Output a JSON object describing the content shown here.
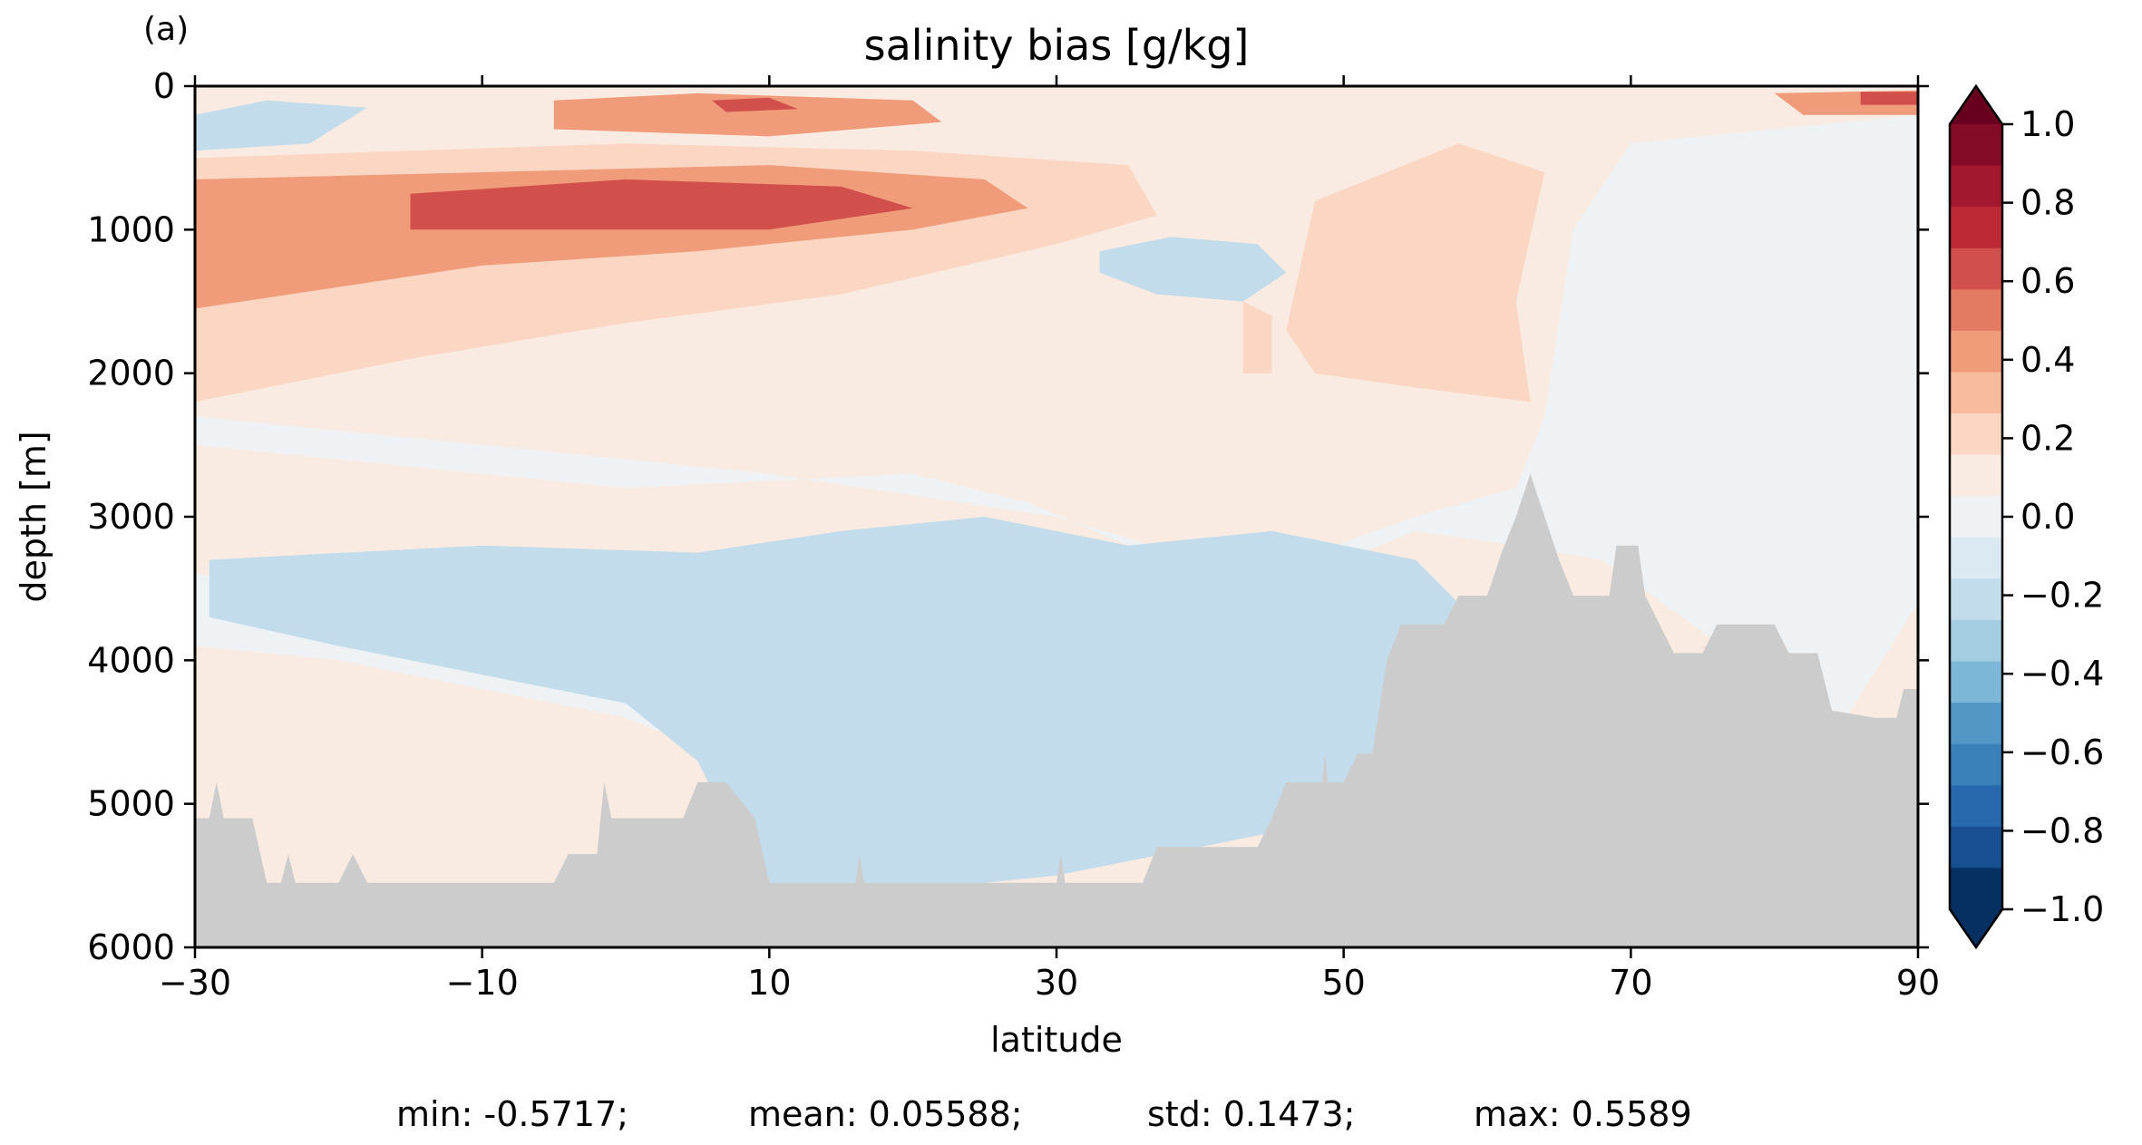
{
  "chart_data": {
    "type": "heatmap",
    "panel_label": "(a)",
    "title": "salinity bias [g/kg]",
    "xlabel": "latitude",
    "ylabel": "depth [m]",
    "xlim": [
      -30,
      90
    ],
    "ylim": [
      6000,
      0
    ],
    "x_ticks": [
      -30,
      -10,
      10,
      30,
      50,
      70,
      90
    ],
    "x_tick_labels": [
      "−30",
      "−10",
      "10",
      "30",
      "50",
      "70",
      "90"
    ],
    "y_ticks": [
      0,
      1000,
      2000,
      3000,
      4000,
      5000,
      6000
    ],
    "y_tick_labels": [
      "0",
      "1000",
      "2000",
      "3000",
      "4000",
      "5000",
      "6000"
    ],
    "colorbar": {
      "range": [
        -1.0,
        1.0
      ],
      "extend": "both",
      "tick_values": [
        1.0,
        0.8,
        0.6,
        0.4,
        0.2,
        0.0,
        -0.2,
        -0.4,
        -0.6,
        -0.8,
        -1.0
      ],
      "tick_labels": [
        "1.0",
        "0.8",
        "0.6",
        "0.4",
        "0.2",
        "0.0",
        "−0.2",
        "−0.4",
        "−0.6",
        "−0.8",
        "−1.0"
      ],
      "levels_top_to_bottom": [
        "#840b25",
        "#a3172f",
        "#bd2a36",
        "#d2504b",
        "#e27b62",
        "#f09c7b",
        "#f9bb9d",
        "#fbd6c2",
        "#f9ebe2",
        "#eef2f5",
        "#dbeaf2",
        "#c3dceb",
        "#a4cde2",
        "#7cb7d8",
        "#5297c6",
        "#3a80b9",
        "#2769ac",
        "#174f90",
        "#053061"
      ],
      "extend_high_color": "#67001f",
      "extend_low_color": "#053061"
    },
    "colors": {
      "ocean_background": "#f9ebe2",
      "land_mask": "#cccccc"
    },
    "bias_regions": [
      {
        "value": 0.0,
        "poly": [
          [
            -30,
            2300
          ],
          [
            -10,
            2500
          ],
          [
            10,
            2700
          ],
          [
            30,
            3000
          ],
          [
            40,
            3300
          ],
          [
            48,
            3250
          ],
          [
            55,
            3000
          ],
          [
            62,
            2800
          ],
          [
            64,
            2300
          ],
          [
            66,
            1000
          ],
          [
            70,
            400
          ],
          [
            90,
            200
          ],
          [
            90,
            3600
          ],
          [
            85,
            4400
          ],
          [
            80,
            4300
          ],
          [
            75,
            3800
          ],
          [
            68,
            3300
          ],
          [
            62,
            3200
          ],
          [
            55,
            3100
          ],
          [
            50,
            3300
          ],
          [
            42,
            3400
          ],
          [
            35,
            3200
          ],
          [
            28,
            2900
          ],
          [
            20,
            2700
          ],
          [
            10,
            2750
          ],
          [
            0,
            2800
          ],
          [
            -10,
            2700
          ],
          [
            -20,
            2600
          ],
          [
            -30,
            2500
          ]
        ]
      },
      {
        "value": 0.0,
        "poly": [
          [
            -30,
            3400
          ],
          [
            -10,
            3600
          ],
          [
            0,
            3800
          ],
          [
            5,
            3900
          ],
          [
            10,
            4000
          ],
          [
            10,
            5000
          ],
          [
            5,
            4600
          ],
          [
            0,
            4400
          ],
          [
            -10,
            4200
          ],
          [
            -20,
            4000
          ],
          [
            -30,
            3900
          ]
        ]
      },
      {
        "value": -0.2,
        "poly": [
          [
            -29,
            3300
          ],
          [
            -10,
            3200
          ],
          [
            5,
            3250
          ],
          [
            15,
            3100
          ],
          [
            25,
            3000
          ],
          [
            35,
            3200
          ],
          [
            45,
            3100
          ],
          [
            55,
            3300
          ],
          [
            58,
            3600
          ],
          [
            58,
            4500
          ],
          [
            55,
            5000
          ],
          [
            40,
            5300
          ],
          [
            30,
            5500
          ],
          [
            20,
            5600
          ],
          [
            10,
            5600
          ],
          [
            7,
            5100
          ],
          [
            5,
            4700
          ],
          [
            0,
            4300
          ],
          [
            -10,
            4100
          ],
          [
            -20,
            3900
          ],
          [
            -29,
            3700
          ]
        ]
      },
      {
        "value": -0.2,
        "poly": [
          [
            33,
            1150
          ],
          [
            38,
            1050
          ],
          [
            44,
            1100
          ],
          [
            46,
            1300
          ],
          [
            43,
            1500
          ],
          [
            37,
            1450
          ],
          [
            33,
            1300
          ]
        ]
      },
      {
        "value": -0.2,
        "poly": [
          [
            -30,
            200
          ],
          [
            -25,
            100
          ],
          [
            -18,
            150
          ],
          [
            -22,
            400
          ],
          [
            -30,
            450
          ]
        ]
      },
      {
        "value": 0.2,
        "poly": [
          [
            -30,
            500
          ],
          [
            -15,
            450
          ],
          [
            0,
            400
          ],
          [
            20,
            450
          ],
          [
            35,
            550
          ],
          [
            37,
            900
          ],
          [
            30,
            1100
          ],
          [
            15,
            1450
          ],
          [
            0,
            1650
          ],
          [
            -15,
            1900
          ],
          [
            -30,
            2200
          ]
        ]
      },
      {
        "value": 0.2,
        "poly": [
          [
            48,
            800
          ],
          [
            58,
            400
          ],
          [
            64,
            600
          ],
          [
            62,
            1500
          ],
          [
            63,
            2200
          ],
          [
            55,
            2100
          ],
          [
            48,
            2000
          ],
          [
            46,
            1700
          ]
        ]
      },
      {
        "value": 0.2,
        "poly": [
          [
            43,
            1500
          ],
          [
            45,
            1600
          ],
          [
            45,
            2000
          ],
          [
            43,
            2000
          ]
        ]
      },
      {
        "value": 0.2,
        "poly": [
          [
            75,
            3900
          ],
          [
            80,
            4100
          ],
          [
            83,
            4500
          ],
          [
            85,
            4700
          ],
          [
            82,
            4700
          ],
          [
            78,
            4300
          ]
        ]
      },
      {
        "value": 0.4,
        "poly": [
          [
            -30,
            650
          ],
          [
            -10,
            600
          ],
          [
            10,
            550
          ],
          [
            25,
            650
          ],
          [
            28,
            850
          ],
          [
            20,
            1000
          ],
          [
            5,
            1150
          ],
          [
            -10,
            1250
          ],
          [
            -30,
            1550
          ]
        ]
      },
      {
        "value": 0.4,
        "poly": [
          [
            -5,
            100
          ],
          [
            5,
            50
          ],
          [
            20,
            100
          ],
          [
            22,
            250
          ],
          [
            10,
            350
          ],
          [
            -5,
            300
          ]
        ]
      },
      {
        "value": 0.4,
        "poly": [
          [
            80,
            50
          ],
          [
            90,
            30
          ],
          [
            90,
            200
          ],
          [
            82,
            200
          ]
        ]
      },
      {
        "value": 0.6,
        "poly": [
          [
            -15,
            750
          ],
          [
            0,
            650
          ],
          [
            15,
            700
          ],
          [
            20,
            850
          ],
          [
            10,
            1000
          ],
          [
            -15,
            1000
          ]
        ]
      },
      {
        "value": 0.6,
        "poly": [
          [
            6,
            100
          ],
          [
            10,
            80
          ],
          [
            12,
            160
          ],
          [
            7,
            180
          ]
        ]
      },
      {
        "value": 0.6,
        "poly": [
          [
            86,
            40
          ],
          [
            90,
            40
          ],
          [
            90,
            130
          ],
          [
            86,
            130
          ]
        ]
      }
    ],
    "bathymetry_depth_profile": [
      [
        -30,
        5100
      ],
      [
        -29,
        5100
      ],
      [
        -28.5,
        4850
      ],
      [
        -28,
        5100
      ],
      [
        -26,
        5100
      ],
      [
        -25,
        5550
      ],
      [
        -24,
        5550
      ],
      [
        -23.5,
        5350
      ],
      [
        -23,
        5550
      ],
      [
        -20,
        5550
      ],
      [
        -19,
        5350
      ],
      [
        -18,
        5550
      ],
      [
        -5,
        5550
      ],
      [
        -4,
        5350
      ],
      [
        -2,
        5350
      ],
      [
        -1.5,
        4850
      ],
      [
        -1,
        5100
      ],
      [
        4,
        5100
      ],
      [
        5,
        4850
      ],
      [
        7,
        4850
      ],
      [
        9,
        5100
      ],
      [
        10,
        5550
      ],
      [
        16,
        5550
      ],
      [
        16.3,
        5350
      ],
      [
        16.6,
        5550
      ],
      [
        30,
        5550
      ],
      [
        30.3,
        5350
      ],
      [
        30.6,
        5550
      ],
      [
        36,
        5550
      ],
      [
        37,
        5300
      ],
      [
        44,
        5300
      ],
      [
        45,
        5100
      ],
      [
        46,
        4850
      ],
      [
        48.5,
        4850
      ],
      [
        48.7,
        4650
      ],
      [
        48.9,
        4850
      ],
      [
        50,
        4850
      ],
      [
        51,
        4650
      ],
      [
        52,
        4650
      ],
      [
        53,
        4000
      ],
      [
        54,
        3750
      ],
      [
        57,
        3750
      ],
      [
        58,
        3550
      ],
      [
        60,
        3550
      ],
      [
        61,
        3250
      ],
      [
        62,
        3000
      ],
      [
        63,
        2700
      ],
      [
        64,
        3000
      ],
      [
        65,
        3300
      ],
      [
        66,
        3550
      ],
      [
        68.5,
        3550
      ],
      [
        69,
        3200
      ],
      [
        70.5,
        3200
      ],
      [
        71,
        3550
      ],
      [
        72,
        3750
      ],
      [
        73,
        3950
      ],
      [
        75,
        3950
      ],
      [
        76,
        3750
      ],
      [
        80,
        3750
      ],
      [
        81,
        3950
      ],
      [
        83,
        3950
      ],
      [
        84,
        4350
      ],
      [
        87,
        4400
      ],
      [
        88,
        4400
      ],
      [
        88.5,
        4400
      ],
      [
        89,
        4200
      ],
      [
        90,
        4200
      ],
      [
        90,
        6000
      ],
      [
        -30,
        6000
      ]
    ],
    "stats": {
      "min": -0.5717,
      "mean": 0.05588,
      "std": 0.1473,
      "max": 0.5589
    },
    "stats_text": {
      "min": "min: -0.5717;",
      "mean": "mean: 0.05588;",
      "std": "std: 0.1473;",
      "max": "max: 0.5589"
    }
  }
}
